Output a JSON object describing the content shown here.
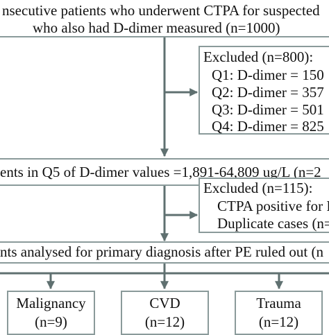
{
  "colors": {
    "box_border": "#8a9a9a",
    "arrow": "#5f7070",
    "text": "#111111",
    "background": "#ffffff"
  },
  "box1": {
    "line1": "nsecutive patients who underwent CTPA for suspected",
    "line2": "who also had D-dimer measured (n=1000)"
  },
  "excluded1": {
    "title": "Excluded (n=800):",
    "items": [
      "Q1: D-dimer = 150",
      "Q2: D-dimer = 357",
      "Q3: D-dimer = 501",
      "Q4: D-dimer = 825"
    ]
  },
  "box2": {
    "text": "ents in Q5 of D-dimer values =1,891-64,809 ug/L (n=2"
  },
  "excluded2": {
    "title": "Excluded (n=115):",
    "items": [
      "CTPA positive for P",
      "Duplicate cases (n="
    ]
  },
  "box3": {
    "text": "nts analysed for primary diagnosis after PE ruled out (n"
  },
  "outcomes": [
    {
      "label": "Malignancy",
      "count": "(n=9)"
    },
    {
      "label": "CVD",
      "count": "(n=12)"
    },
    {
      "label": "Trauma",
      "count": "(n=12)"
    }
  ]
}
